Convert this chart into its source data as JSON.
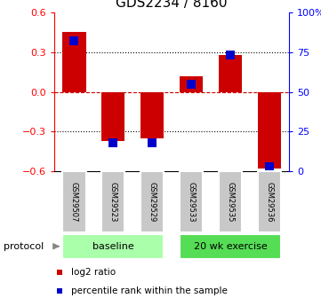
{
  "title": "GDS2234 / 8160",
  "samples": [
    "GSM29507",
    "GSM29523",
    "GSM29529",
    "GSM29533",
    "GSM29535",
    "GSM29536"
  ],
  "log2_ratio": [
    0.45,
    -0.37,
    -0.35,
    0.12,
    0.28,
    -0.58
  ],
  "percentile_rank": [
    82,
    18,
    18,
    55,
    73,
    3
  ],
  "ylim_left": [
    -0.6,
    0.6
  ],
  "ylim_right": [
    0,
    100
  ],
  "yticks_left": [
    -0.6,
    -0.3,
    0.0,
    0.3,
    0.6
  ],
  "yticks_right": [
    0,
    25,
    50,
    75,
    100
  ],
  "ytick_labels_right": [
    "0",
    "25",
    "50",
    "75",
    "100%"
  ],
  "bar_color": "#cc0000",
  "marker_color": "#0000cc",
  "zero_line_color": "#cc0000",
  "grid_color": "#000000",
  "groups": [
    {
      "label": "baseline",
      "start": 0,
      "end": 3,
      "color": "#aaffaa"
    },
    {
      "label": "20 wk exercise",
      "start": 3,
      "end": 6,
      "color": "#55dd55"
    }
  ],
  "protocol_label": "protocol",
  "legend_items": [
    {
      "label": "log2 ratio",
      "color": "#cc0000"
    },
    {
      "label": "percentile rank within the sample",
      "color": "#0000cc"
    }
  ],
  "bar_width": 0.6,
  "marker_size": 7,
  "title_fontsize": 11,
  "tick_fontsize": 8,
  "label_fontsize": 8
}
